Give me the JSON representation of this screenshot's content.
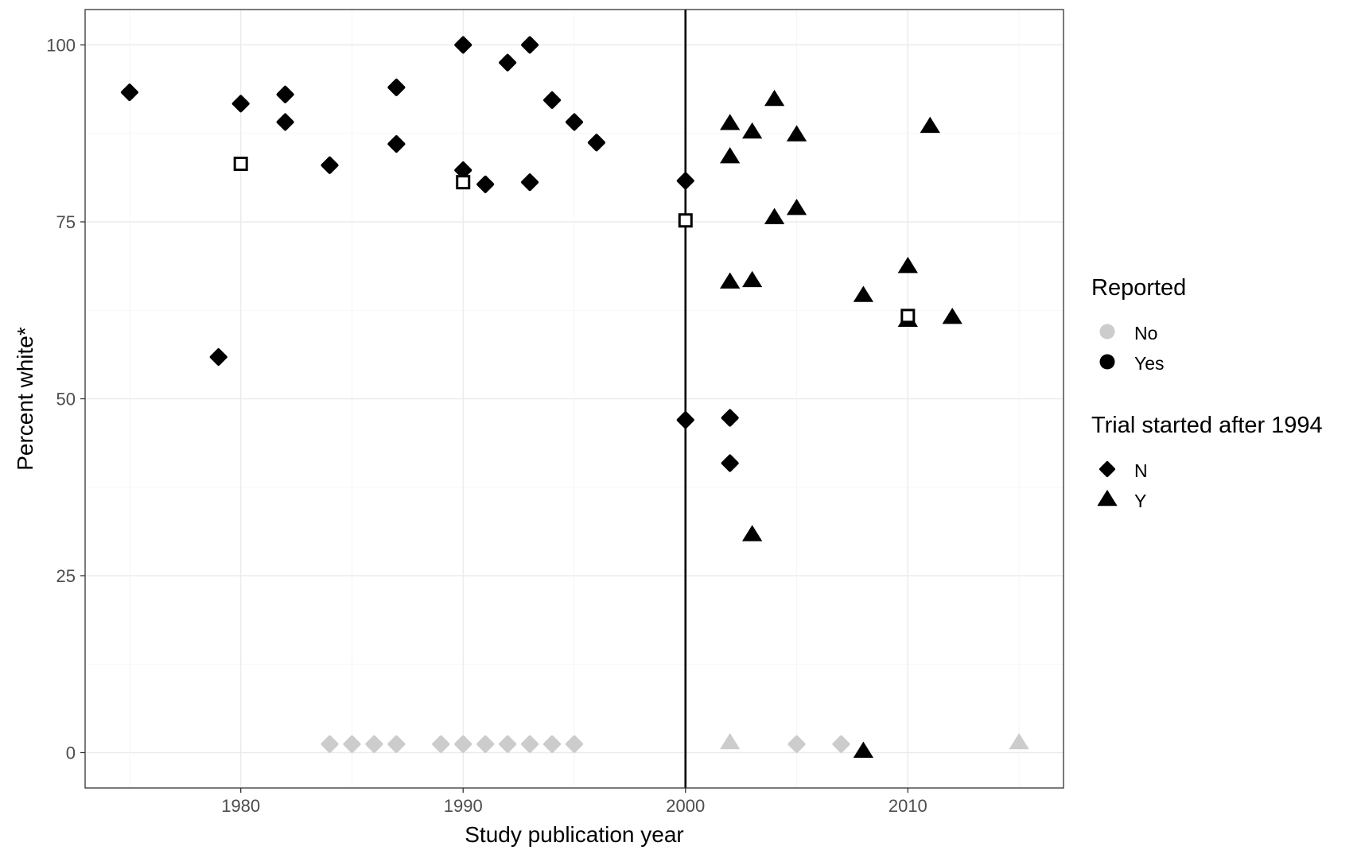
{
  "chart_data": {
    "type": "scatter",
    "xlabel": "Study publication year",
    "ylabel": "Percent white*",
    "xlim": [
      1973,
      2017
    ],
    "ylim": [
      -5,
      105
    ],
    "x_ticks": [
      1980,
      1990,
      2000,
      2010
    ],
    "y_ticks": [
      0,
      25,
      50,
      75,
      100
    ],
    "grid": true,
    "reference_line_x": 2000,
    "legend_placement": "right",
    "colors": {
      "yes": "#000000",
      "no": "#cccccc"
    },
    "legends": [
      {
        "title": "Reported",
        "entries": [
          {
            "label": "No",
            "color": "#cccccc",
            "shape": "circle"
          },
          {
            "label": "Yes",
            "color": "#000000",
            "shape": "circle"
          }
        ]
      },
      {
        "title": "Trial started after 1994",
        "entries": [
          {
            "label": "N",
            "color": "#000000",
            "shape": "diamond"
          },
          {
            "label": "Y",
            "color": "#000000",
            "shape": "triangle"
          }
        ]
      }
    ],
    "points": [
      {
        "x": 1975,
        "y": 93.3,
        "reported": "Yes",
        "after1994": "N"
      },
      {
        "x": 1979,
        "y": 55.9,
        "reported": "Yes",
        "after1994": "N"
      },
      {
        "x": 1980,
        "y": 91.7,
        "reported": "Yes",
        "after1994": "N"
      },
      {
        "x": 1982,
        "y": 93.0,
        "reported": "Yes",
        "after1994": "N"
      },
      {
        "x": 1982,
        "y": 89.1,
        "reported": "Yes",
        "after1994": "N"
      },
      {
        "x": 1984,
        "y": 83.0,
        "reported": "Yes",
        "after1994": "N"
      },
      {
        "x": 1987,
        "y": 94.0,
        "reported": "Yes",
        "after1994": "N"
      },
      {
        "x": 1987,
        "y": 86.0,
        "reported": "Yes",
        "after1994": "N"
      },
      {
        "x": 1990,
        "y": 100.0,
        "reported": "Yes",
        "after1994": "N"
      },
      {
        "x": 1990,
        "y": 82.3,
        "reported": "Yes",
        "after1994": "N"
      },
      {
        "x": 1991,
        "y": 80.3,
        "reported": "Yes",
        "after1994": "N"
      },
      {
        "x": 1992,
        "y": 97.5,
        "reported": "Yes",
        "after1994": "N"
      },
      {
        "x": 1993,
        "y": 100.0,
        "reported": "Yes",
        "after1994": "N"
      },
      {
        "x": 1993,
        "y": 80.6,
        "reported": "Yes",
        "after1994": "N"
      },
      {
        "x": 1994,
        "y": 92.2,
        "reported": "Yes",
        "after1994": "N"
      },
      {
        "x": 1995,
        "y": 89.1,
        "reported": "Yes",
        "after1994": "N"
      },
      {
        "x": 1996,
        "y": 86.2,
        "reported": "Yes",
        "after1994": "N"
      },
      {
        "x": 2000,
        "y": 80.8,
        "reported": "Yes",
        "after1994": "N"
      },
      {
        "x": 2000,
        "y": 47.0,
        "reported": "Yes",
        "after1994": "N"
      },
      {
        "x": 2002,
        "y": 47.3,
        "reported": "Yes",
        "after1994": "N"
      },
      {
        "x": 2002,
        "y": 40.9,
        "reported": "Yes",
        "after1994": "N"
      },
      {
        "x": 2002,
        "y": 88.9,
        "reported": "Yes",
        "after1994": "Y"
      },
      {
        "x": 2002,
        "y": 84.2,
        "reported": "Yes",
        "after1994": "Y"
      },
      {
        "x": 2002,
        "y": 66.5,
        "reported": "Yes",
        "after1994": "Y"
      },
      {
        "x": 2003,
        "y": 87.7,
        "reported": "Yes",
        "after1994": "Y"
      },
      {
        "x": 2003,
        "y": 66.7,
        "reported": "Yes",
        "after1994": "Y"
      },
      {
        "x": 2003,
        "y": 30.8,
        "reported": "Yes",
        "after1994": "Y"
      },
      {
        "x": 2004,
        "y": 92.3,
        "reported": "Yes",
        "after1994": "Y"
      },
      {
        "x": 2004,
        "y": 75.6,
        "reported": "Yes",
        "after1994": "Y"
      },
      {
        "x": 2005,
        "y": 87.3,
        "reported": "Yes",
        "after1994": "Y"
      },
      {
        "x": 2005,
        "y": 76.9,
        "reported": "Yes",
        "after1994": "Y"
      },
      {
        "x": 2008,
        "y": 64.6,
        "reported": "Yes",
        "after1994": "Y"
      },
      {
        "x": 2008,
        "y": 0.2,
        "reported": "Yes",
        "after1994": "Y"
      },
      {
        "x": 2010,
        "y": 68.7,
        "reported": "Yes",
        "after1994": "Y"
      },
      {
        "x": 2010,
        "y": 61.1,
        "reported": "Yes",
        "after1994": "Y"
      },
      {
        "x": 2011,
        "y": 88.5,
        "reported": "Yes",
        "after1994": "Y"
      },
      {
        "x": 2012,
        "y": 61.5,
        "reported": "Yes",
        "after1994": "Y"
      },
      {
        "x": 1984,
        "y": 1.2,
        "reported": "No",
        "after1994": "N"
      },
      {
        "x": 1985,
        "y": 1.2,
        "reported": "No",
        "after1994": "N"
      },
      {
        "x": 1986,
        "y": 1.2,
        "reported": "No",
        "after1994": "N"
      },
      {
        "x": 1987,
        "y": 1.2,
        "reported": "No",
        "after1994": "N"
      },
      {
        "x": 1989,
        "y": 1.2,
        "reported": "No",
        "after1994": "N"
      },
      {
        "x": 1990,
        "y": 1.2,
        "reported": "No",
        "after1994": "N"
      },
      {
        "x": 1991,
        "y": 1.2,
        "reported": "No",
        "after1994": "N"
      },
      {
        "x": 1992,
        "y": 1.2,
        "reported": "No",
        "after1994": "N"
      },
      {
        "x": 1993,
        "y": 1.2,
        "reported": "No",
        "after1994": "N"
      },
      {
        "x": 1994,
        "y": 1.2,
        "reported": "No",
        "after1994": "N"
      },
      {
        "x": 1995,
        "y": 1.2,
        "reported": "No",
        "after1994": "N"
      },
      {
        "x": 2005,
        "y": 1.2,
        "reported": "No",
        "after1994": "N"
      },
      {
        "x": 2007,
        "y": 1.2,
        "reported": "No",
        "after1994": "N"
      },
      {
        "x": 2002,
        "y": 1.4,
        "reported": "No",
        "after1994": "Y"
      },
      {
        "x": 2015,
        "y": 1.4,
        "reported": "No",
        "after1994": "Y"
      }
    ],
    "open_square_points": [
      {
        "x": 1980,
        "y": 83.2
      },
      {
        "x": 1990,
        "y": 80.6
      },
      {
        "x": 2000,
        "y": 75.2
      },
      {
        "x": 2010,
        "y": 61.7
      }
    ]
  }
}
